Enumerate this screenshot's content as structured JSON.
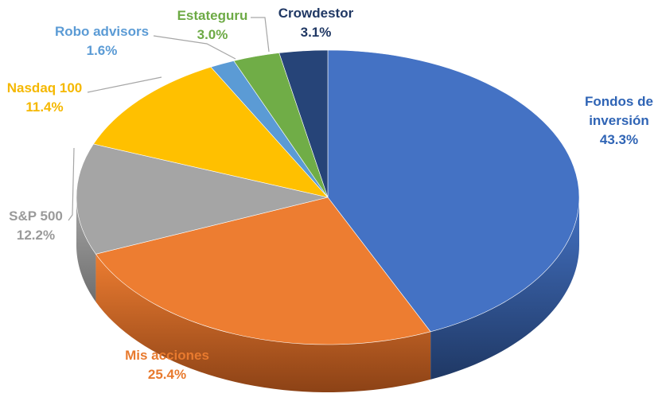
{
  "chart_data": {
    "type": "pie",
    "style": "3d-exploded-none",
    "slices": [
      {
        "name": "Fondos de inversión",
        "label_lines": [
          "Fondos de",
          "inversión"
        ],
        "value": 43.3,
        "value_label": "43.3%",
        "color": "#4472C4",
        "side_color": "#1F3864"
      },
      {
        "name": "Mis acciones",
        "label_lines": [
          "Mis acciones"
        ],
        "value": 25.4,
        "value_label": "25.4%",
        "color": "#ED7D31",
        "side_color": "#8C4216"
      },
      {
        "name": "S&P 500",
        "label_lines": [
          "S&P 500"
        ],
        "value": 12.2,
        "value_label": "12.2%",
        "color": "#A5A5A5",
        "side_color": "#6E6E6E"
      },
      {
        "name": "Nasdaq 100",
        "label_lines": [
          "Nasdaq 100"
        ],
        "value": 11.4,
        "value_label": "11.4%",
        "color": "#FFC000",
        "side_color": "#B38600"
      },
      {
        "name": "Robo advisors",
        "label_lines": [
          "Robo advisors"
        ],
        "value": 1.6,
        "value_label": "1.6%",
        "color": "#5B9BD5",
        "side_color": "#2E5F8C"
      },
      {
        "name": "Estateguru",
        "label_lines": [
          "Estateguru"
        ],
        "value": 3.0,
        "value_label": "3.0%",
        "color": "#70AD47",
        "side_color": "#3F6A24"
      },
      {
        "name": "Crowdestor",
        "label_lines": [
          "Crowdestor"
        ],
        "value": 3.1,
        "value_label": "3.1%",
        "color": "#264478",
        "side_color": "#142745"
      }
    ],
    "label_colors": {
      "Fondos de inversión": "#2F64B5",
      "Mis acciones": "#E87A2E",
      "S&P 500": "#9A9A9A",
      "Nasdaq 100": "#F5B800",
      "Robo advisors": "#5B9BD5",
      "Estateguru": "#6DAA45",
      "Crowdestor": "#203864"
    },
    "title": "",
    "legend": "none"
  }
}
